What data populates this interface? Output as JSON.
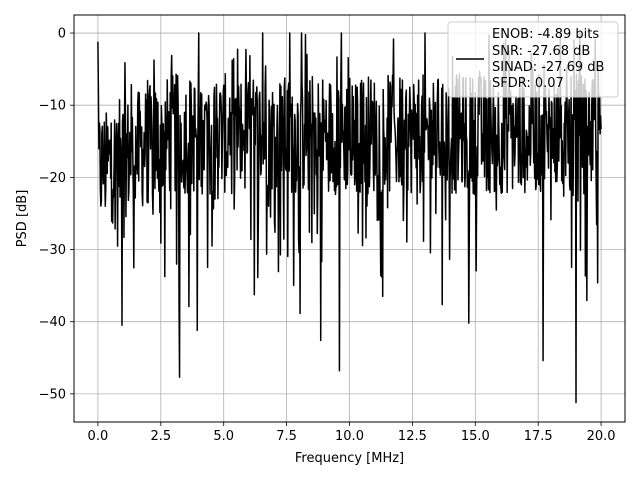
{
  "chart_data": {
    "type": "line",
    "xlabel": "Frequency [MHz]",
    "ylabel": "PSD [dB]",
    "xlim": [
      -0.95,
      20.95
    ],
    "ylim": [
      -53.9,
      2.5
    ],
    "x_ticks": [
      "0.0",
      "2.5",
      "5.0",
      "7.5",
      "10.0",
      "12.5",
      "15.0",
      "17.5",
      "20.0"
    ],
    "x_tick_values": [
      0,
      2.5,
      5,
      7.5,
      10,
      12.5,
      15,
      17.5,
      20
    ],
    "y_ticks": [
      "0",
      "−10",
      "−20",
      "−30",
      "−40",
      "−50"
    ],
    "y_tick_values": [
      0,
      -10,
      -20,
      -30,
      -40,
      -50
    ],
    "grid": true,
    "legend": {
      "placement": "top-right",
      "entries": [
        "ENOB: -4.89 bits",
        "SNR: -27.68 dB",
        "SINAD: -27.69 dB",
        "SFDR: 0.07"
      ]
    },
    "series": [
      {
        "color": "#000000",
        "x_range": [
          0,
          20
        ],
        "num_points": 1024,
        "envelope_max_db": 0,
        "typical_band_db": [
          -22,
          -8
        ],
        "notable_minima": [
          {
            "x": 3.25,
            "y": -47.7
          },
          {
            "x": 8.85,
            "y": -42.6
          },
          {
            "x": 9.6,
            "y": -46.8
          },
          {
            "x": 17.7,
            "y": -45.4
          },
          {
            "x": 19.0,
            "y": -51.2
          },
          {
            "x": 14.75,
            "y": -40.2
          },
          {
            "x": 0.95,
            "y": -40.5
          },
          {
            "x": 3.95,
            "y": -41.2
          }
        ],
        "notable_maxima": [
          {
            "x": 0.0,
            "y": -1.2
          },
          {
            "x": 6.55,
            "y": 0.0
          },
          {
            "x": 15.55,
            "y": -0.3
          }
        ]
      }
    ]
  }
}
